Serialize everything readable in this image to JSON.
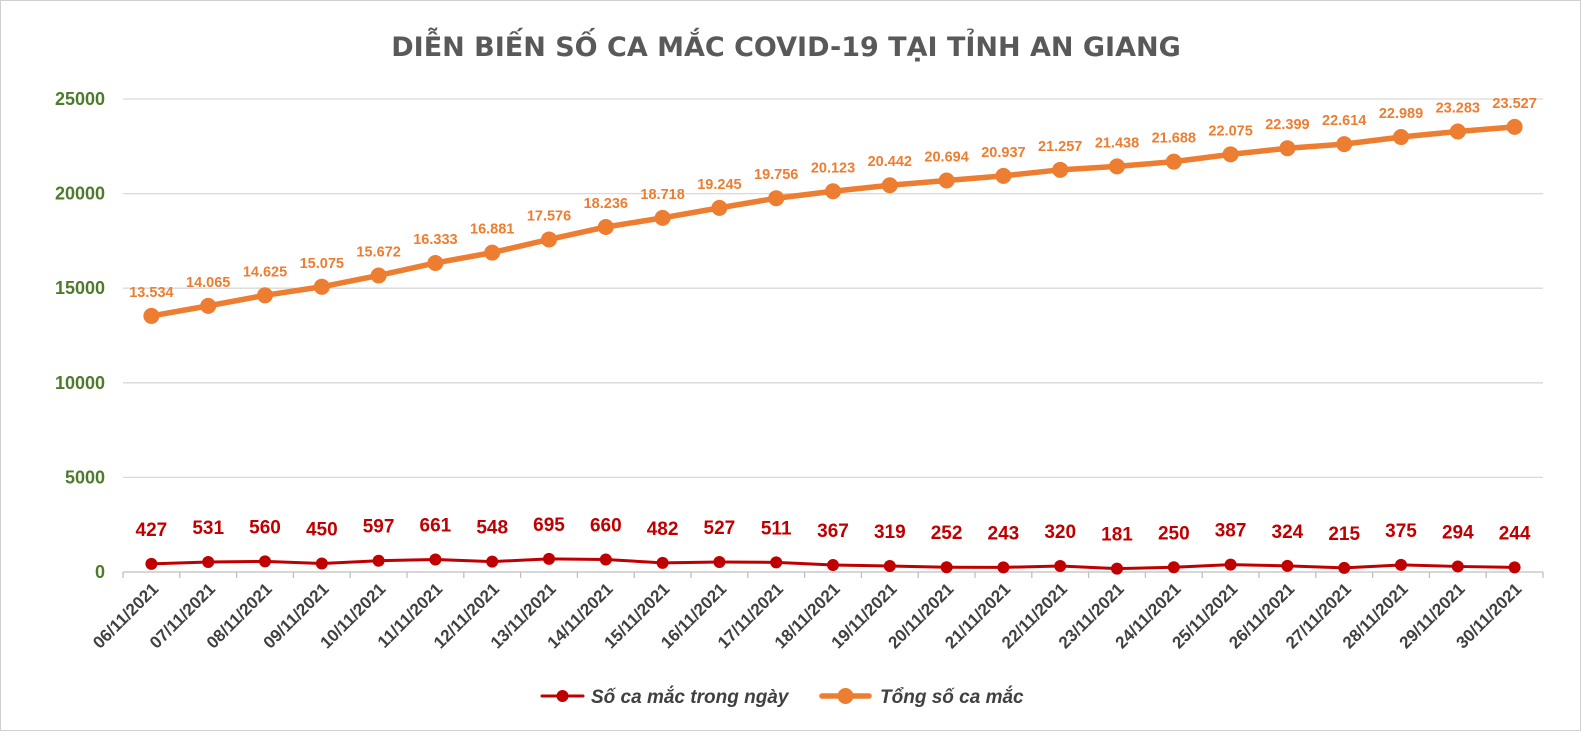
{
  "chart_data": {
    "type": "line",
    "title": "DIỄN BIẾN SỐ CA MẮC COVID-19 TẠI TỈNH AN GIANG",
    "xlabel": "",
    "ylabel": "",
    "ylim": [
      0,
      25000
    ],
    "yticks": [
      "0",
      "5000",
      "10000",
      "15000",
      "20000",
      "25000"
    ],
    "grid": true,
    "legend_position": "bottom",
    "categories": [
      "06/11/2021",
      "07/11/2021",
      "08/11/2021",
      "09/11/2021",
      "10/11/2021",
      "11/11/2021",
      "12/11/2021",
      "13/11/2021",
      "14/11/2021",
      "15/11/2021",
      "16/11/2021",
      "17/11/2021",
      "18/11/2021",
      "19/11/2021",
      "20/11/2021",
      "21/11/2021",
      "22/11/2021",
      "23/11/2021",
      "24/11/2021",
      "25/11/2021",
      "26/11/2021",
      "27/11/2021",
      "28/11/2021",
      "29/11/2021",
      "30/11/2021"
    ],
    "series": [
      {
        "name": "Số ca mắc trong ngày",
        "color": "#c00000",
        "values": [
          427,
          531,
          560,
          450,
          597,
          661,
          548,
          695,
          660,
          482,
          527,
          511,
          367,
          319,
          252,
          243,
          320,
          181,
          250,
          387,
          324,
          215,
          375,
          294,
          244
        ],
        "labels": [
          "427",
          "531",
          "560",
          "450",
          "597",
          "661",
          "548",
          "695",
          "660",
          "482",
          "527",
          "511",
          "367",
          "319",
          "252",
          "243",
          "320",
          "181",
          "250",
          "387",
          "324",
          "215",
          "375",
          "294",
          "244"
        ]
      },
      {
        "name": "Tổng số ca mắc",
        "color": "#ed7d31",
        "values": [
          13534,
          14065,
          14625,
          15075,
          15672,
          16333,
          16881,
          17576,
          18236,
          18718,
          19245,
          19756,
          20123,
          20442,
          20694,
          20937,
          21257,
          21438,
          21688,
          22075,
          22399,
          22614,
          22989,
          23283,
          23527
        ],
        "labels": [
          "13.534",
          "14.065",
          "14.625",
          "15.075",
          "15.672",
          "16.333",
          "16.881",
          "17.576",
          "18.236",
          "18.718",
          "19.245",
          "19.756",
          "20.123",
          "20.442",
          "20.694",
          "20.937",
          "21.257",
          "21.438",
          "21.688",
          "22.075",
          "22.399",
          "22.614",
          "22.989",
          "23.283",
          "23.527"
        ]
      }
    ]
  }
}
